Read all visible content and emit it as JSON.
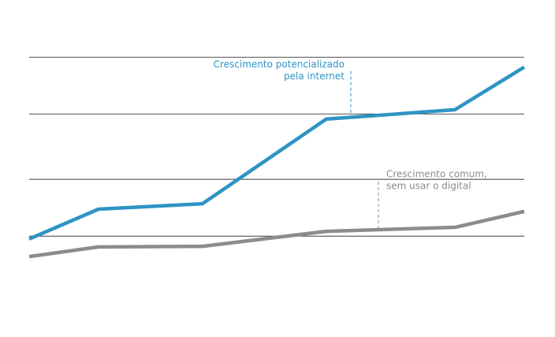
{
  "chart_data": {
    "type": "line",
    "x": [
      0,
      14,
      35,
      60,
      86,
      100
    ],
    "xlim": [
      0,
      100
    ],
    "ylim": [
      0,
      100
    ],
    "yticks": [
      28,
      48,
      71,
      91
    ],
    "grid": true,
    "series": [
      {
        "name": "Crescimento potencializado pela internet",
        "color": "#2e94c4",
        "values": [
          27,
          37.5,
          39.4,
          69.2,
          72.5,
          87.5
        ]
      },
      {
        "name": "Crescimento comum, sem usar o digital",
        "color": "#8c8c8c",
        "values": [
          20.8,
          24.2,
          24.4,
          29.7,
          31.1,
          36.7
        ]
      }
    ],
    "annotations": [
      {
        "lines": [
          "Crescimento potencializado",
          "pela internet"
        ],
        "color": "#2e94c4"
      },
      {
        "lines": [
          "Crescimento comum,",
          "sem usar o digital"
        ],
        "color": "#8c8c8c"
      }
    ]
  }
}
